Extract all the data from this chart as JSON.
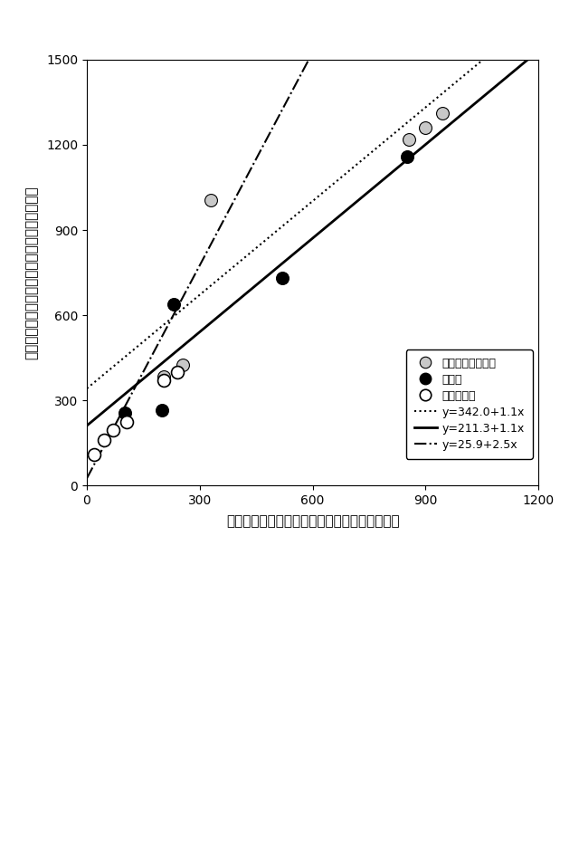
{
  "title": "",
  "xlabel": "撒像画像で観察されたメイオファウナの個体数",
  "ylabel": "顕微鏡下で観察されたメイオファウナの個体数",
  "xlim": [
    0,
    1200
  ],
  "ylim": [
    0,
    1500
  ],
  "xticks": [
    0,
    300,
    600,
    900,
    1200
  ],
  "yticks": [
    0,
    300,
    600,
    900,
    1200,
    1500
  ],
  "all_meiofauna_x": [
    205,
    255,
    330,
    855,
    900,
    945
  ],
  "all_meiofauna_y": [
    385,
    425,
    1005,
    1220,
    1260,
    1310
  ],
  "nematoda_x": [
    100,
    200,
    230,
    520,
    850
  ],
  "nematoda_y": [
    255,
    265,
    640,
    730,
    1160
  ],
  "copepoda_x": [
    20,
    45,
    70,
    105,
    205,
    240
  ],
  "copepoda_y": [
    110,
    160,
    195,
    225,
    370,
    400
  ],
  "line1_label": "y=342.0+1.1x",
  "line2_label": "y=211.3+1.1x",
  "line3_label": "y=25.9+2.5x",
  "line1_intercept": 342.0,
  "line1_slope": 1.1,
  "line2_intercept": 211.3,
  "line2_slope": 1.1,
  "line3_intercept": 25.9,
  "line3_slope": 2.5,
  "legend_label1": "全メイオファウナ",
  "legend_label2": "線虫類",
  "legend_label3": "カイアシ類",
  "bg_color": "#ffffff",
  "marker_size": 100,
  "linewidth": 1.5
}
